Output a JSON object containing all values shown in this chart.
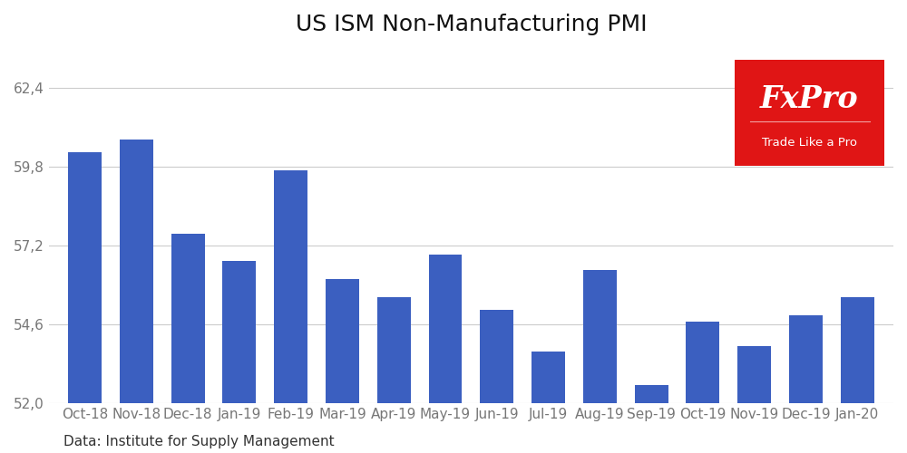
{
  "title": "US ISM Non-Manufacturing PMI",
  "categories": [
    "Oct-18",
    "Nov-18",
    "Dec-18",
    "Jan-19",
    "Feb-19",
    "Mar-19",
    "Apr-19",
    "May-19",
    "Jun-19",
    "Jul-19",
    "Aug-19",
    "Sep-19",
    "Oct-19",
    "Nov-19",
    "Dec-19",
    "Jan-20"
  ],
  "values": [
    60.3,
    60.7,
    57.6,
    56.7,
    59.7,
    56.1,
    55.5,
    56.9,
    55.1,
    53.7,
    56.4,
    52.6,
    54.7,
    53.9,
    54.9,
    55.5
  ],
  "bar_color": "#3b5fc0",
  "yticks": [
    52.0,
    54.6,
    57.2,
    59.8,
    62.4
  ],
  "ylim_min": 52.0,
  "ylim_max": 63.8,
  "footnote": "Data: Institute for Supply Management",
  "background_color": "#ffffff",
  "grid_color": "#cccccc",
  "title_fontsize": 18,
  "tick_fontsize": 11,
  "footnote_fontsize": 11,
  "logo_text1": "FxPro",
  "logo_text2": "Trade Like a Pro",
  "logo_bg_color": "#e01515",
  "logo_text1_color": "#ffffff",
  "logo_text2_color": "#ffffff"
}
